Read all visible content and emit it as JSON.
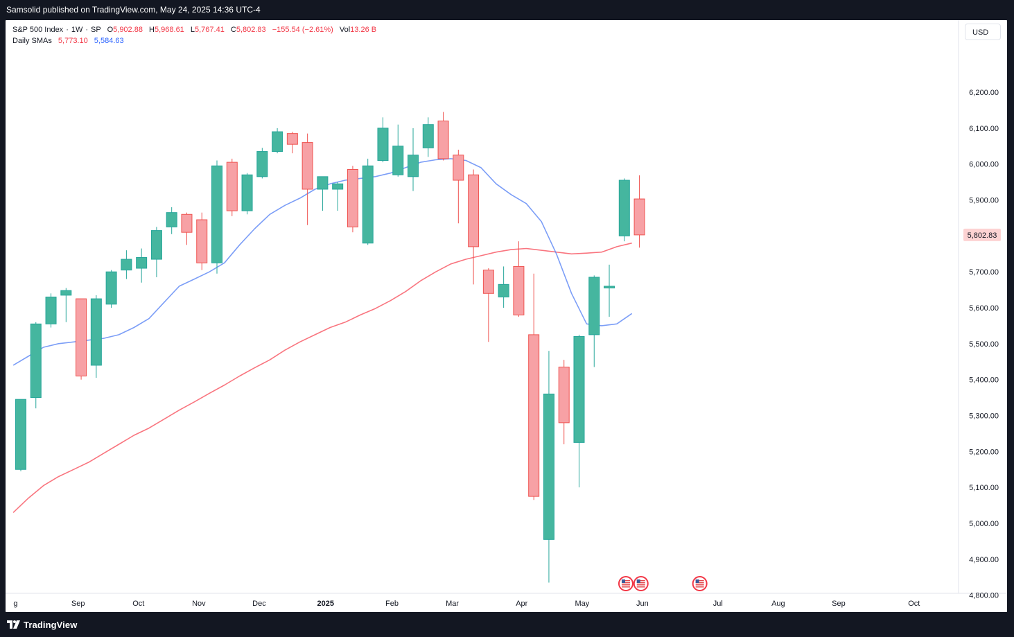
{
  "header": {
    "published_by": "Samsolid published on TradingView.com, May 24, 2025 14:36 UTC-4"
  },
  "legend": {
    "symbol": "S&P 500 Index",
    "interval": "1W",
    "exchange": "SP",
    "open_label": "O",
    "open": "5,902.88",
    "high_label": "H",
    "high": "5,968.61",
    "low_label": "L",
    "low": "5,767.41",
    "close_label": "C",
    "close": "5,802.83",
    "change": "−155.54 (−2.61%)",
    "volume_label": "Vol",
    "volume": "13.26 B",
    "sma_title": "Daily SMAs",
    "sma1_value": "5,773.10",
    "sma2_value": "5,584.63"
  },
  "currency": "USD",
  "footer": {
    "brand": "TradingView"
  },
  "chart_data": {
    "type": "candlestick",
    "interval": "weekly",
    "y_axis_ticks": [
      "6,200.00",
      "6,100.00",
      "6,000.00",
      "5,900.00",
      "5,800.00",
      "5,700.00",
      "5,600.00",
      "5,500.00",
      "5,400.00",
      "5,300.00",
      "5,200.00",
      "5,100.00",
      "5,000.00",
      "4,900.00",
      "4,800.00"
    ],
    "ylim": [
      4735,
      6295
    ],
    "last_price_label": "5,802.83",
    "x_axis_labels": [
      {
        "label": "g",
        "week_index": -0.35,
        "bold": false
      },
      {
        "label": "Sep",
        "week_index": 3.8,
        "bold": false
      },
      {
        "label": "Oct",
        "week_index": 7.8,
        "bold": false
      },
      {
        "label": "Nov",
        "week_index": 11.8,
        "bold": false
      },
      {
        "label": "Dec",
        "week_index": 15.8,
        "bold": false
      },
      {
        "label": "2025",
        "week_index": 20.2,
        "bold": true
      },
      {
        "label": "Feb",
        "week_index": 24.6,
        "bold": false
      },
      {
        "label": "Mar",
        "week_index": 28.6,
        "bold": false
      },
      {
        "label": "Apr",
        "week_index": 33.2,
        "bold": false
      },
      {
        "label": "May",
        "week_index": 37.2,
        "bold": false
      },
      {
        "label": "Jun",
        "week_index": 41.2,
        "bold": false
      },
      {
        "label": "Jul",
        "week_index": 46.2,
        "bold": false
      },
      {
        "label": "Aug",
        "week_index": 50.2,
        "bold": false
      },
      {
        "label": "Sep",
        "week_index": 54.2,
        "bold": false
      },
      {
        "label": "Oct",
        "week_index": 59.2,
        "bold": false
      }
    ],
    "candles": [
      {
        "o": 5150,
        "h": 5345,
        "l": 5145,
        "c": 5345
      },
      {
        "o": 5350,
        "h": 5560,
        "l": 5320,
        "c": 5555
      },
      {
        "o": 5555,
        "h": 5640,
        "l": 5545,
        "c": 5630
      },
      {
        "o": 5635,
        "h": 5655,
        "l": 5560,
        "c": 5648
      },
      {
        "o": 5625,
        "h": 5625,
        "l": 5400,
        "c": 5410
      },
      {
        "o": 5440,
        "h": 5635,
        "l": 5405,
        "c": 5625
      },
      {
        "o": 5610,
        "h": 5705,
        "l": 5600,
        "c": 5700
      },
      {
        "o": 5705,
        "h": 5760,
        "l": 5680,
        "c": 5735
      },
      {
        "o": 5710,
        "h": 5765,
        "l": 5670,
        "c": 5740
      },
      {
        "o": 5735,
        "h": 5825,
        "l": 5685,
        "c": 5815
      },
      {
        "o": 5825,
        "h": 5880,
        "l": 5805,
        "c": 5865
      },
      {
        "o": 5860,
        "h": 5865,
        "l": 5775,
        "c": 5810
      },
      {
        "o": 5845,
        "h": 5865,
        "l": 5705,
        "c": 5725
      },
      {
        "o": 5725,
        "h": 6010,
        "l": 5695,
        "c": 5995
      },
      {
        "o": 6005,
        "h": 6015,
        "l": 5855,
        "c": 5870
      },
      {
        "o": 5870,
        "h": 5975,
        "l": 5860,
        "c": 5970
      },
      {
        "o": 5965,
        "h": 6045,
        "l": 5960,
        "c": 6035
      },
      {
        "o": 6035,
        "h": 6100,
        "l": 6030,
        "c": 6090
      },
      {
        "o": 6085,
        "h": 6090,
        "l": 6030,
        "c": 6055
      },
      {
        "o": 6060,
        "h": 6085,
        "l": 5830,
        "c": 5930
      },
      {
        "o": 5930,
        "h": 5965,
        "l": 5870,
        "c": 5965
      },
      {
        "o": 5930,
        "h": 5950,
        "l": 5870,
        "c": 5945
      },
      {
        "o": 5985,
        "h": 5995,
        "l": 5810,
        "c": 5825
      },
      {
        "o": 5780,
        "h": 6015,
        "l": 5775,
        "c": 5995
      },
      {
        "o": 6010,
        "h": 6130,
        "l": 6005,
        "c": 6100
      },
      {
        "o": 5970,
        "h": 6110,
        "l": 5965,
        "c": 6050
      },
      {
        "o": 5965,
        "h": 6100,
        "l": 5925,
        "c": 6025
      },
      {
        "o": 6045,
        "h": 6130,
        "l": 6020,
        "c": 6110
      },
      {
        "o": 6120,
        "h": 6145,
        "l": 6010,
        "c": 6015
      },
      {
        "o": 6025,
        "h": 6040,
        "l": 5835,
        "c": 5955
      },
      {
        "o": 5970,
        "h": 5985,
        "l": 5665,
        "c": 5770
      },
      {
        "o": 5705,
        "h": 5710,
        "l": 5505,
        "c": 5640
      },
      {
        "o": 5630,
        "h": 5715,
        "l": 5600,
        "c": 5665
      },
      {
        "o": 5715,
        "h": 5785,
        "l": 5575,
        "c": 5580
      },
      {
        "o": 5525,
        "h": 5695,
        "l": 5065,
        "c": 5075
      },
      {
        "o": 4955,
        "h": 5480,
        "l": 4835,
        "c": 5360
      },
      {
        "o": 5435,
        "h": 5455,
        "l": 5220,
        "c": 5280
      },
      {
        "o": 5225,
        "h": 5525,
        "l": 5100,
        "c": 5520
      },
      {
        "o": 5525,
        "h": 5690,
        "l": 5435,
        "c": 5685
      },
      {
        "o": 5655,
        "h": 5720,
        "l": 5575,
        "c": 5660
      },
      {
        "o": 5800,
        "h": 5960,
        "l": 5785,
        "c": 5955
      },
      {
        "o": 5902.88,
        "h": 5968.61,
        "l": 5767.41,
        "c": 5802.83
      }
    ],
    "series": [
      {
        "name": "Daily SMA 1",
        "color": "#f7525f",
        "start_week": -0.5,
        "values": [
          5030,
          5070,
          5105,
          5130,
          5150,
          5170,
          5195,
          5220,
          5245,
          5265,
          5290,
          5315,
          5338,
          5362,
          5385,
          5410,
          5433,
          5455,
          5482,
          5505,
          5525,
          5545,
          5560,
          5580,
          5598,
          5620,
          5645,
          5675,
          5700,
          5722,
          5735,
          5745,
          5755,
          5762,
          5765,
          5760,
          5755,
          5750,
          5752,
          5755,
          5770,
          5780
        ]
      },
      {
        "name": "Daily SMA 2",
        "color": "#5b86f5",
        "start_week": -0.5,
        "values": [
          5440,
          5465,
          5490,
          5500,
          5505,
          5510,
          5515,
          5525,
          5545,
          5570,
          5615,
          5660,
          5680,
          5700,
          5725,
          5775,
          5820,
          5860,
          5885,
          5905,
          5930,
          5945,
          5955,
          5960,
          5965,
          5975,
          5990,
          6005,
          6012,
          6015,
          6010,
          5990,
          5945,
          5915,
          5890,
          5840,
          5750,
          5640,
          5555,
          5550,
          5555,
          5584
        ]
      }
    ],
    "colors": {
      "up": "#26a69a",
      "up_fill": "#45b69f",
      "down": "#ef5350",
      "down_fill": "#f7a1a5",
      "price_label_bg": "#fdd3d3"
    },
    "event_markers": [
      {
        "kind": "US economic event",
        "week_index": 40.1
      },
      {
        "kind": "US economic event",
        "week_index": 41.1
      },
      {
        "kind": "US economic event",
        "week_index": 45.0
      }
    ]
  }
}
